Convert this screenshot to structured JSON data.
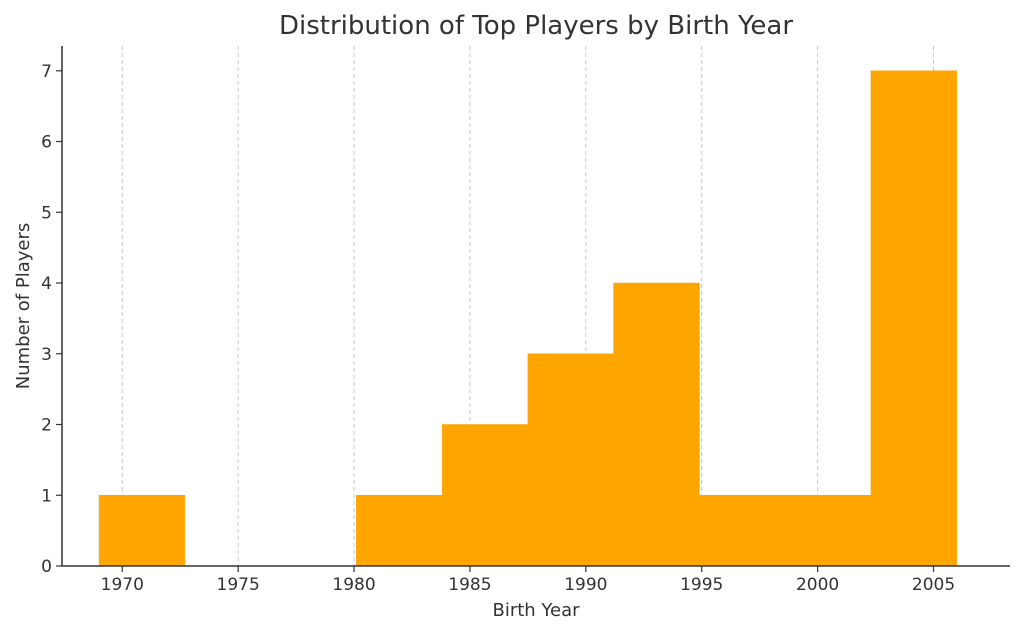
{
  "chart_data": {
    "type": "bar",
    "title": "Distribution of Top Players by Birth Year",
    "xlabel": "Birth Year",
    "ylabel": "Number of Players",
    "xlim": [
      1967.4,
      2008.3
    ],
    "ylim": [
      0,
      7.35
    ],
    "x_ticks": [
      "1970",
      "1975",
      "1980",
      "1985",
      "1990",
      "1995",
      "2000",
      "2005"
    ],
    "y_ticks": [
      "0",
      "1",
      "2",
      "3",
      "4",
      "5",
      "6",
      "7"
    ],
    "bins": [
      {
        "start": 1969.0,
        "end": 1972.7,
        "value": 1
      },
      {
        "start": 1972.7,
        "end": 1976.4,
        "value": 0
      },
      {
        "start": 1976.4,
        "end": 1980.1,
        "value": 0
      },
      {
        "start": 1980.1,
        "end": 1983.8,
        "value": 1
      },
      {
        "start": 1983.8,
        "end": 1987.5,
        "value": 2
      },
      {
        "start": 1987.5,
        "end": 1991.2,
        "value": 3
      },
      {
        "start": 1991.2,
        "end": 1994.9,
        "value": 4
      },
      {
        "start": 1994.9,
        "end": 1998.6,
        "value": 1
      },
      {
        "start": 1998.6,
        "end": 2002.3,
        "value": 1
      },
      {
        "start": 2002.3,
        "end": 2006.0,
        "value": 7
      }
    ],
    "bar_color": "#FFA500",
    "grid": "vertical dashed"
  }
}
